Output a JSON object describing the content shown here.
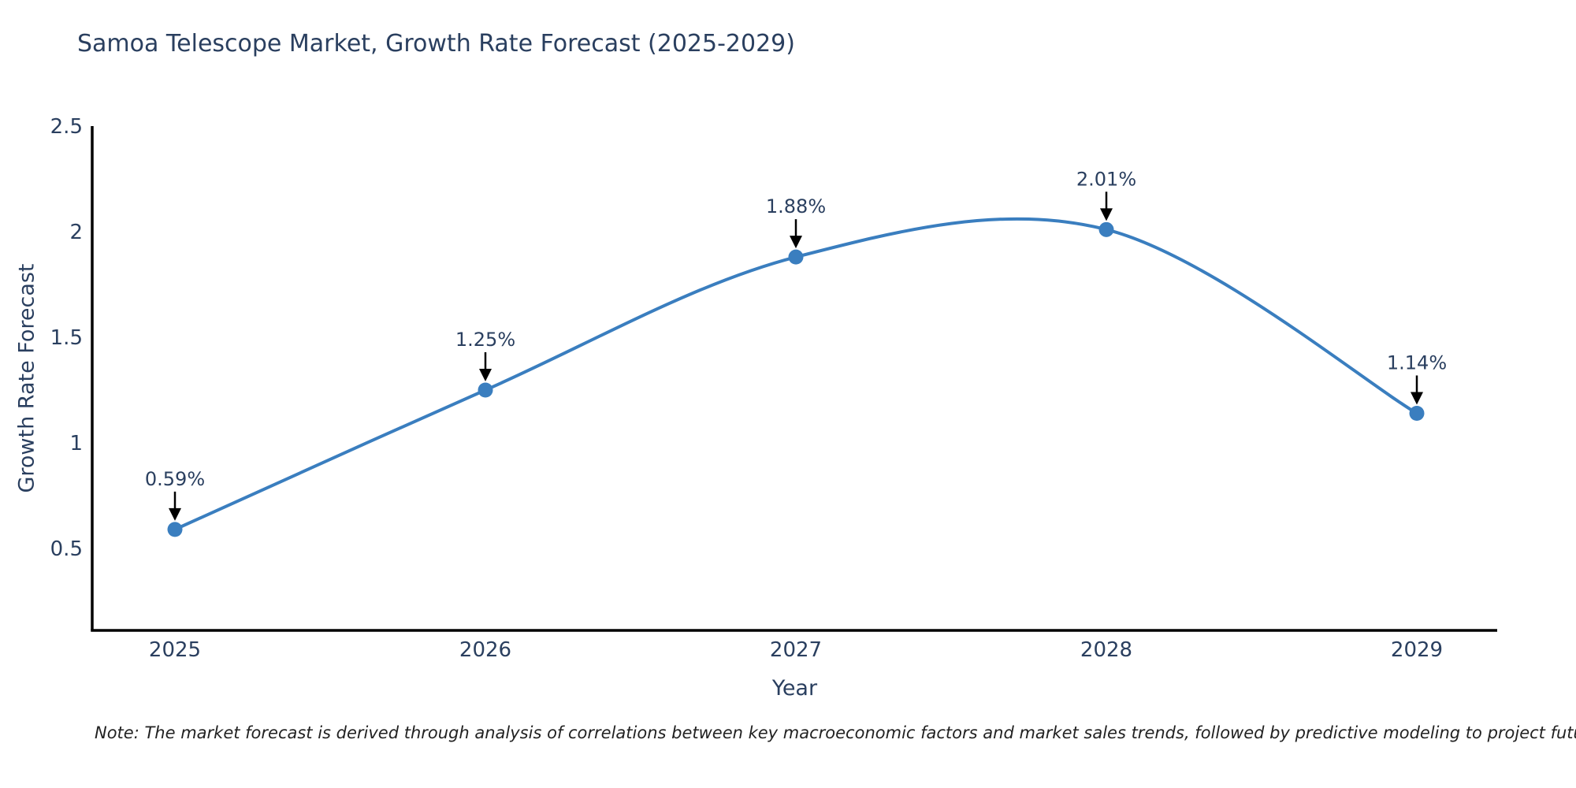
{
  "note": "Note: The market forecast is derived through analysis of correlations between key macroeconomic factors and market sales trends, followed by predictive modeling to project future sales",
  "chart_data": {
    "type": "line",
    "title": "Samoa Telescope Market, Growth Rate Forecast (2025-2029)",
    "xlabel": "Year",
    "ylabel": "Growth Rate Forecast",
    "categories": [
      "2025",
      "2026",
      "2027",
      "2028",
      "2029"
    ],
    "values": [
      0.59,
      1.25,
      1.88,
      2.01,
      1.14
    ],
    "point_labels": [
      "0.59%",
      "1.25%",
      "1.88%",
      "2.01%",
      "1.14%"
    ],
    "yticks": [
      0.5,
      1,
      1.5,
      2,
      2.5
    ],
    "ylim": [
      0.11,
      2.5
    ],
    "line_shape": "spline",
    "grid": false,
    "legend": "none",
    "colors": {
      "line": "#3a7ebf",
      "marker": "#3a7ebf",
      "label_text": "#2a3f5f",
      "tick_text": "#2a3f5f",
      "axis_line": "#000000",
      "arrow": "#000000",
      "background": "#ffffff"
    }
  }
}
